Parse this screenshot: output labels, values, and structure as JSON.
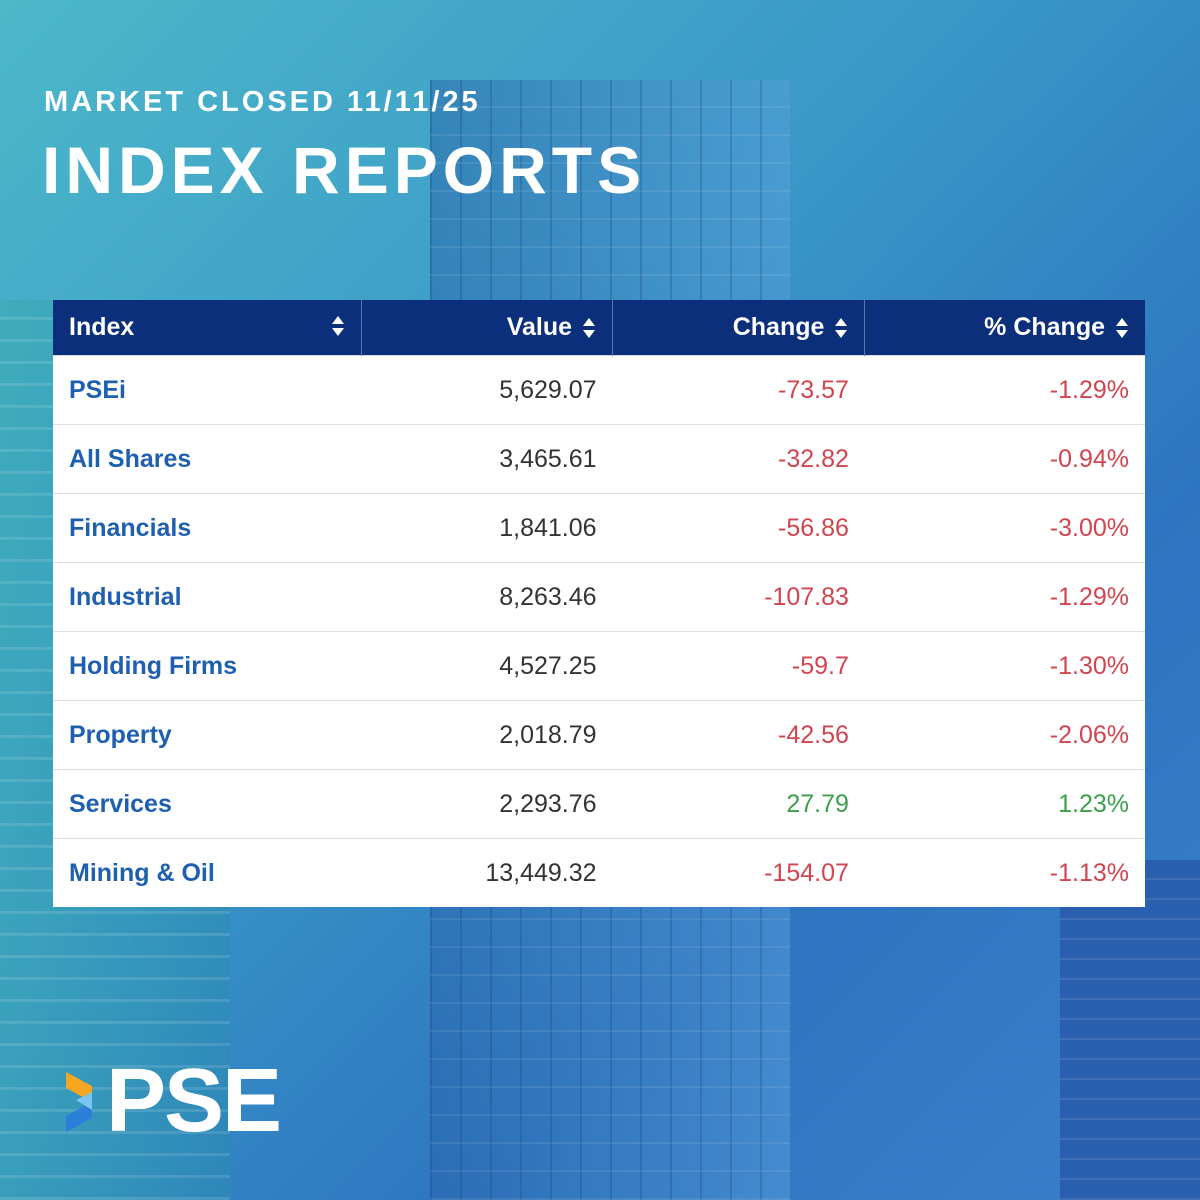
{
  "header": {
    "subtitle": "MARKET CLOSED 11/11/25",
    "title": "INDEX REPORTS"
  },
  "table": {
    "columns": [
      "Index",
      "Value",
      "Change",
      "% Change"
    ],
    "rows": [
      [
        "PSEi",
        "5,629.07",
        "-73.57",
        "-1.29%"
      ],
      [
        "All Shares",
        "3,465.61",
        "-32.82",
        "-0.94%"
      ],
      [
        "Financials",
        "1,841.06",
        "-56.86",
        "-3.00%"
      ],
      [
        "Industrial",
        "8,263.46",
        "-107.83",
        "-1.29%"
      ],
      [
        "Holding Firms",
        "4,527.25",
        "-59.7",
        "-1.30%"
      ],
      [
        "Property",
        "2,018.79",
        "-42.56",
        "-2.06%"
      ],
      [
        "Services",
        "2,293.76",
        "27.79",
        "1.23%"
      ],
      [
        "Mining & Oil",
        "13,449.32",
        "-154.07",
        "-1.13%"
      ]
    ],
    "colors": {
      "header": "#0b2f7a",
      "name": "#1f5fb0",
      "negative": "#d0454f",
      "positive": "#3aa04a"
    }
  },
  "logo": "PSE"
}
